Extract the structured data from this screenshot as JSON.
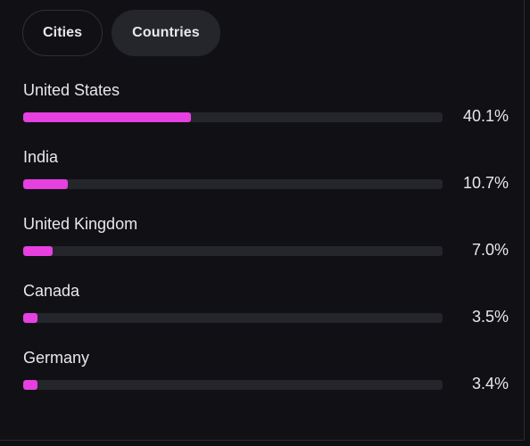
{
  "tabs": [
    {
      "label": "Cities",
      "active": false
    },
    {
      "label": "Countries",
      "active": true
    }
  ],
  "countries": [
    {
      "name": "United States",
      "percent_label": "40.1%",
      "fraction": 0.401
    },
    {
      "name": "India",
      "percent_label": "10.7%",
      "fraction": 0.107
    },
    {
      "name": "United Kingdom",
      "percent_label": "7.0%",
      "fraction": 0.07
    },
    {
      "name": "Canada",
      "percent_label": "3.5%",
      "fraction": 0.035
    },
    {
      "name": "Germany",
      "percent_label": "3.4%",
      "fraction": 0.034
    }
  ],
  "colors": {
    "bar_fill": "#e640e0",
    "bar_track": "#25262c",
    "background": "#111115"
  }
}
